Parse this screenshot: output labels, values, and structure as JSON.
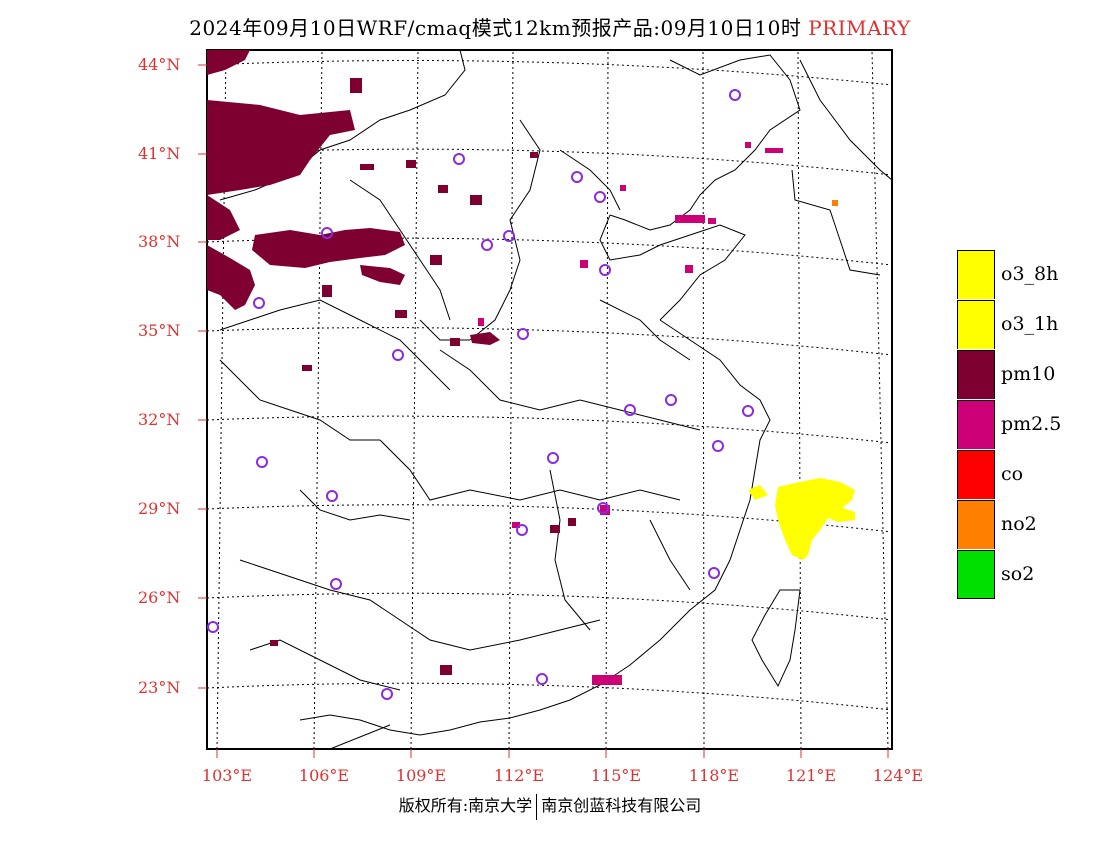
{
  "header": {
    "title": "2024年09月10日WRF/cmaq模式12km预报产品:09月10日10时",
    "badge": "PRIMARY"
  },
  "map": {
    "lat_labels": [
      "44°N",
      "41°N",
      "38°N",
      "35°N",
      "32°N",
      "29°N",
      "26°N",
      "23°N"
    ],
    "lon_labels": [
      "103°E",
      "106°E",
      "109°E",
      "112°E",
      "115°E",
      "118°E",
      "121°E",
      "124°E"
    ]
  },
  "legend": {
    "items": [
      {
        "label": "o3_8h",
        "color": "#ffff00"
      },
      {
        "label": "o3_1h",
        "color": "#ffff00"
      },
      {
        "label": "pm10",
        "color": "#7d0030"
      },
      {
        "label": "pm2.5",
        "color": "#cc0077"
      },
      {
        "label": "co",
        "color": "#ff0000"
      },
      {
        "label": "no2",
        "color": "#ff8000"
      },
      {
        "label": "so2",
        "color": "#00e000"
      }
    ]
  },
  "colors": {
    "accent_red": "#e03030",
    "pm10": "#7d0030",
    "pm25": "#cc0077",
    "o3": "#ffff00",
    "station": "#8a2be2"
  },
  "footer": {
    "left": "版权所有:南京大学",
    "right": "南京创蓝科技有限公司"
  }
}
